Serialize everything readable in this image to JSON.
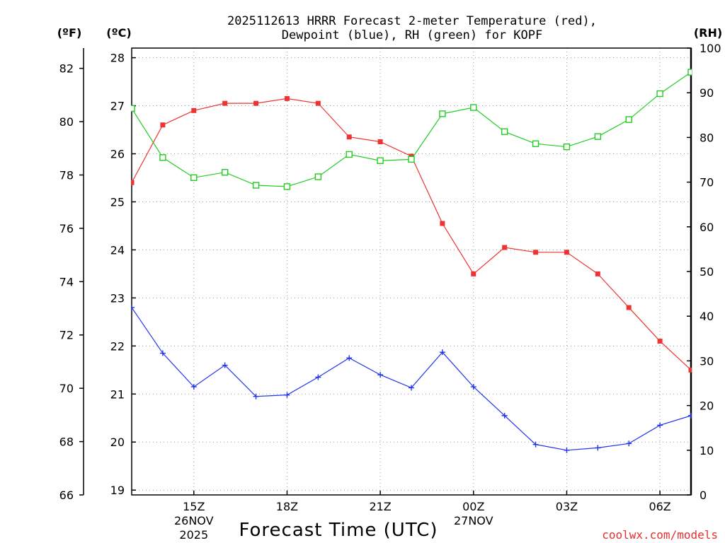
{
  "chart_data": {
    "type": "line",
    "title_line1": "2025112613 HRRR Forecast 2-meter Temperature (red),",
    "title_line2": "Dewpoint (blue), RH (green) for KOPF",
    "unit_f": "(ºF)",
    "unit_c": "(ºC)",
    "unit_rh": "(RH)",
    "xlabel": "Forecast Time (UTC)",
    "credit": "coolwx.com/models",
    "x_hours": [
      13,
      14,
      15,
      16,
      17,
      18,
      19,
      20,
      21,
      22,
      23,
      24,
      25,
      26,
      27,
      28,
      29,
      30,
      31
    ],
    "x_range": [
      13,
      31
    ],
    "x_ticks": [
      {
        "hour": 15,
        "label": "15Z",
        "sub1": "26NOV",
        "sub2": "2025"
      },
      {
        "hour": 18,
        "label": "18Z"
      },
      {
        "hour": 21,
        "label": "21Z"
      },
      {
        "hour": 24,
        "label": "00Z",
        "sub1": "27NOV"
      },
      {
        "hour": 27,
        "label": "03Z"
      },
      {
        "hour": 30,
        "label": "06Z"
      }
    ],
    "c_range": [
      18.9,
      28.2
    ],
    "c_ticks": [
      19,
      20,
      21,
      22,
      23,
      24,
      25,
      26,
      27,
      28
    ],
    "f_range": [
      66,
      82.76
    ],
    "f_ticks": [
      66,
      68,
      70,
      72,
      74,
      76,
      78,
      80,
      82
    ],
    "rh_range": [
      0,
      100
    ],
    "rh_ticks": [
      0,
      10,
      20,
      30,
      40,
      50,
      60,
      70,
      80,
      90,
      100
    ],
    "series": [
      {
        "name": "2-meter Temperature",
        "units": "C",
        "color": "#ee3333",
        "marker": "square-filled",
        "values": [
          25.4,
          26.6,
          26.9,
          27.05,
          27.05,
          27.15,
          27.05,
          26.35,
          26.25,
          25.95,
          24.55,
          23.5,
          24.05,
          23.95,
          23.95,
          23.5,
          22.8,
          22.1,
          21.5
        ]
      },
      {
        "name": "Dewpoint",
        "units": "C",
        "color": "#2233ee",
        "marker": "plus",
        "values": [
          22.8,
          21.85,
          21.15,
          21.6,
          20.95,
          20.98,
          21.35,
          21.75,
          21.4,
          21.13,
          21.87,
          21.15,
          20.55,
          19.95,
          19.83,
          19.88,
          19.97,
          20.35,
          20.55
        ]
      },
      {
        "name": "RH",
        "units": "%",
        "color": "#22cc22",
        "marker": "square-open",
        "values": [
          86.5,
          75.5,
          71.0,
          72.2,
          69.3,
          69.0,
          71.2,
          76.2,
          74.8,
          75.1,
          85.3,
          86.7,
          81.3,
          78.6,
          77.9,
          80.2,
          84.0,
          89.8,
          94.6
        ]
      }
    ]
  }
}
